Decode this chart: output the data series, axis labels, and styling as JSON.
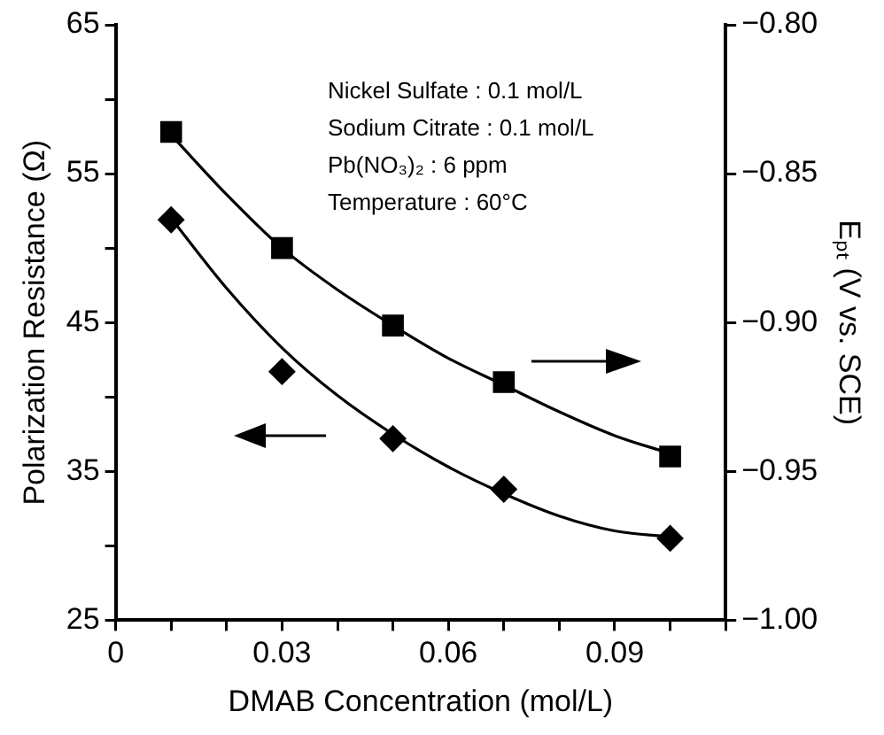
{
  "chart_data": {
    "type": "scatter",
    "xlabel": "DMAB Concentration (mol/L)",
    "ylabel": "Polarization Resistance (Ω)",
    "y2label": "Eₚₜ (V vs. SCE)",
    "xlim": [
      0,
      0.11
    ],
    "xticks": [
      0,
      {
        "value": 0.01,
        "label": null
      },
      {
        "value": 0.02,
        "label": null
      },
      0.03,
      {
        "value": 0.04,
        "label": null
      },
      {
        "value": 0.05,
        "label": null
      },
      0.06,
      {
        "value": 0.07,
        "label": null
      },
      {
        "value": 0.08,
        "label": null
      },
      0.09,
      {
        "value": 0.1,
        "label": null
      },
      {
        "value": 0.11,
        "label": null
      }
    ],
    "ylim": [
      25,
      65
    ],
    "yticks": [
      25,
      {
        "value": 30,
        "label": null
      },
      35,
      {
        "value": 40,
        "label": null
      },
      45,
      {
        "value": 50,
        "label": null
      },
      55,
      {
        "value": 60,
        "label": null
      },
      65
    ],
    "y2lim": [
      -1.0,
      -0.8
    ],
    "y2ticks": [
      {
        "value": -1.0,
        "label": "−1.00"
      },
      {
        "value": -0.95,
        "label": "−0.95"
      },
      {
        "value": -0.9,
        "label": "−0.90"
      },
      {
        "value": -0.85,
        "label": "−0.85"
      },
      {
        "value": -0.8,
        "label": "−0.80"
      }
    ],
    "grid": false,
    "legend": false,
    "series": [
      {
        "marker": "diamond",
        "color": "#000000",
        "x": [
          0.01,
          0.03,
          0.05,
          0.07,
          0.1
        ],
        "values": [
          51.9,
          41.7,
          37.2,
          33.8,
          30.5
        ]
      },
      {
        "marker": "square",
        "color": "#000000",
        "axis": "y2",
        "x": [
          0.01,
          0.03,
          0.05,
          0.07,
          0.1
        ],
        "values": [
          -0.836,
          -0.875,
          -0.901,
          -0.92,
          -0.945
        ]
      },
      {
        "type": "line",
        "marker": "none",
        "line_style": "solid",
        "color": "#000000",
        "x": [
          0.01,
          0.02,
          0.03,
          0.04,
          0.05,
          0.06,
          0.07,
          0.08,
          0.09,
          0.1
        ],
        "values": [
          52,
          47.3,
          43.3,
          40.1,
          37.5,
          35.3,
          33.5,
          32.0,
          31.0,
          30.6
        ]
      },
      {
        "type": "line",
        "marker": "none",
        "line_style": "solid",
        "color": "#000000",
        "axis": "y2",
        "x": [
          0.01,
          0.02,
          0.03,
          0.04,
          0.05,
          0.06,
          0.07,
          0.08,
          0.09,
          0.1
        ],
        "values": [
          -0.837,
          -0.857,
          -0.875,
          -0.889,
          -0.901,
          -0.912,
          -0.921,
          -0.93,
          -0.938,
          -0.944
        ]
      }
    ],
    "annotations": [
      "Nickel Sulfate : 0.1 mol/L",
      "Sodium Citrate : 0.1 mol/L",
      "Pb(NO₃)₂ : 6 ppm",
      "Temperature : 60°C"
    ]
  }
}
